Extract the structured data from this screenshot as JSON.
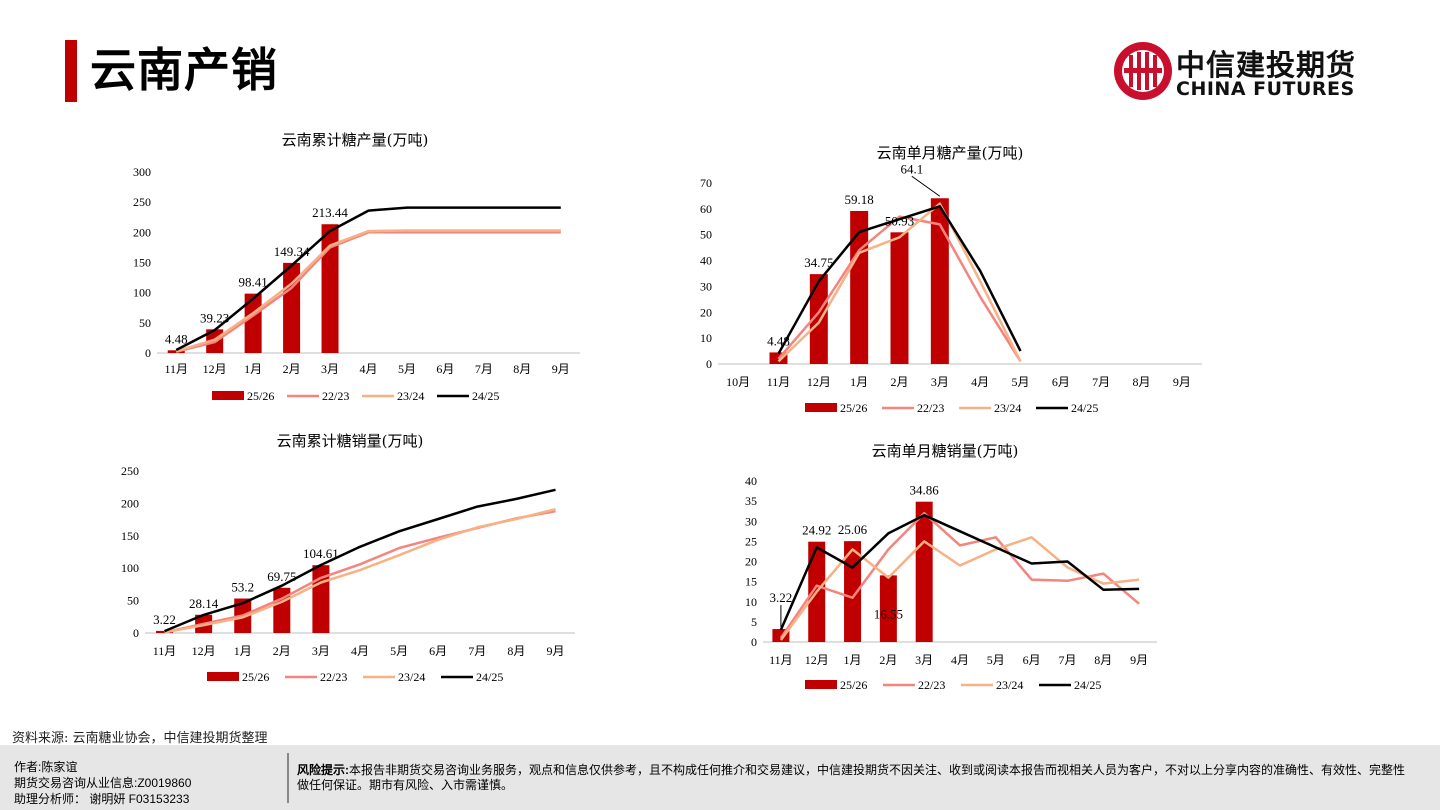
{
  "page": {
    "title": "云南产销"
  },
  "logo": {
    "cn": "中信建投期货",
    "en": "CHINA FUTURES"
  },
  "colors": {
    "red": "#c00000",
    "s2223": "#f4847e",
    "s2324": "#f6b185",
    "s2425": "#000000"
  },
  "source": "资料来源: 云南糖业协会，中信建投期货整理",
  "footer": {
    "author": "作者:陈家谊",
    "license": "期货交易咨询从业信息:Z0019860",
    "assistant": "助理分析师： 谢明妍 F03153233",
    "risk_label": "风险提示:",
    "risk_text": "本报告非期货交易咨询业务服务，观点和信息仅供参考，且不构成任何推介和交易建议，中信建投期货不因关注、收到或阅读本报告而视相关人员为客户，不对以上分享内容的准确性、有效性、完整性做任何保证。期市有风险、入市需谨慎。"
  },
  "chart_data": [
    {
      "id": "cum_prod",
      "type": "bar+line",
      "title": "云南累计糖产量(万吨)",
      "categories": [
        "11月",
        "12月",
        "1月",
        "2月",
        "3月",
        "4月",
        "5月",
        "6月",
        "7月",
        "8月",
        "9月"
      ],
      "ylim": [
        0,
        300
      ],
      "yticks": [
        0,
        50,
        100,
        150,
        200,
        250,
        300
      ],
      "bar_series": {
        "name": "25/26",
        "values": [
          4.48,
          39.23,
          98.41,
          149.34,
          213.44,
          null,
          null,
          null,
          null,
          null,
          null
        ]
      },
      "bar_labels": [
        "4.48",
        "39.23",
        "98.41",
        "149.34",
        "213.44"
      ],
      "line_series": [
        {
          "name": "22/23",
          "values": [
            2,
            18,
            62,
            108,
            175,
            200,
            200,
            200,
            200,
            200,
            200
          ]
        },
        {
          "name": "23/24",
          "values": [
            3,
            22,
            66,
            115,
            178,
            202,
            203,
            203,
            203,
            203,
            203
          ]
        },
        {
          "name": "24/25",
          "values": [
            5,
            38,
            90,
            145,
            202,
            236,
            241,
            241,
            241,
            241,
            241
          ]
        }
      ],
      "legend": [
        "25/26",
        "22/23",
        "23/24",
        "24/25"
      ]
    },
    {
      "id": "mon_prod",
      "type": "bar+line",
      "title": "云南单月糖产量(万吨)",
      "categories": [
        "10月",
        "11月",
        "12月",
        "1月",
        "2月",
        "3月",
        "4月",
        "5月",
        "6月",
        "7月",
        "8月",
        "9月"
      ],
      "ylim": [
        0,
        70
      ],
      "yticks": [
        0,
        10,
        20,
        30,
        40,
        50,
        60,
        70
      ],
      "bar_series": {
        "name": "25/26",
        "values": [
          null,
          4.48,
          34.75,
          59.18,
          50.93,
          64.1,
          null,
          null,
          null,
          null,
          null,
          null
        ]
      },
      "bar_labels": [
        "4.48",
        "34.75",
        "59.18",
        "50.93",
        "64.1"
      ],
      "line_series": [
        {
          "name": "22/23",
          "values": [
            null,
            2,
            20,
            44,
            57,
            54,
            26,
            1,
            null,
            null,
            null,
            null
          ]
        },
        {
          "name": "23/24",
          "values": [
            null,
            1,
            16,
            43,
            49,
            62,
            32,
            1,
            null,
            null,
            null,
            null
          ]
        },
        {
          "name": "24/25",
          "values": [
            null,
            4,
            32,
            51,
            56,
            61,
            36,
            5,
            null,
            null,
            null,
            null
          ]
        }
      ],
      "legend": [
        "25/26",
        "22/23",
        "23/24",
        "24/25"
      ]
    },
    {
      "id": "cum_sales",
      "type": "bar+line",
      "title": "云南累计糖销量(万吨)",
      "categories": [
        "11月",
        "12月",
        "1月",
        "2月",
        "3月",
        "4月",
        "5月",
        "6月",
        "7月",
        "8月",
        "9月"
      ],
      "ylim": [
        0,
        250
      ],
      "yticks": [
        0,
        50,
        100,
        150,
        200,
        250
      ],
      "bar_series": {
        "name": "25/26",
        "values": [
          3.22,
          28.14,
          53.2,
          69.75,
          104.61,
          null,
          null,
          null,
          null,
          null,
          null
        ]
      },
      "bar_labels": [
        "3.22",
        "28.14",
        "53.2",
        "69.75",
        "104.61"
      ],
      "line_series": [
        {
          "name": "22/23",
          "values": [
            1,
            14,
            27,
            53,
            85,
            106,
            131,
            147,
            162,
            177,
            188
          ]
        },
        {
          "name": "23/24",
          "values": [
            1,
            12,
            24,
            48,
            78,
            97,
            120,
            144,
            163,
            176,
            191
          ]
        },
        {
          "name": "24/25",
          "values": [
            3,
            28,
            46,
            73,
            105,
            133,
            157,
            176,
            195,
            207,
            221
          ]
        }
      ],
      "legend": [
        "25/26",
        "22/23",
        "23/24",
        "24/25"
      ]
    },
    {
      "id": "mon_sales",
      "type": "bar+line",
      "title": "云南单月糖销量(万吨)",
      "categories": [
        "11月",
        "12月",
        "1月",
        "2月",
        "3月",
        "4月",
        "5月",
        "6月",
        "7月",
        "8月",
        "9月"
      ],
      "ylim": [
        0,
        40
      ],
      "yticks": [
        0,
        5,
        10,
        15,
        20,
        25,
        30,
        35,
        40
      ],
      "bar_series": {
        "name": "25/26",
        "values": [
          3.22,
          24.92,
          25.06,
          16.55,
          34.86,
          null,
          null,
          null,
          null,
          null,
          null
        ]
      },
      "bar_labels": [
        "3.22",
        "24.92",
        "25.06",
        "16.55",
        "34.86"
      ],
      "line_series": [
        {
          "name": "22/23",
          "values": [
            1,
            14,
            11,
            23,
            32,
            24,
            26,
            15.5,
            15.2,
            17,
            9.5
          ]
        },
        {
          "name": "23/24",
          "values": [
            0.5,
            12.5,
            23,
            16,
            25,
            19,
            23,
            26,
            18.5,
            14.5,
            15.5
          ]
        },
        {
          "name": "24/25",
          "values": [
            3,
            23.5,
            18.5,
            27,
            31.5,
            27.5,
            23.5,
            19.5,
            20,
            13,
            13.2
          ]
        }
      ],
      "legend": [
        "25/26",
        "22/23",
        "23/24",
        "24/25"
      ]
    }
  ]
}
